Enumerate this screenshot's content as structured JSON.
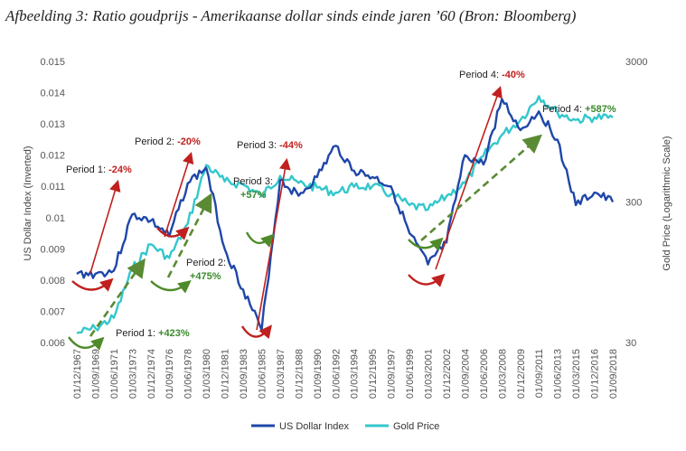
{
  "caption": "Afbeelding 3: Ratio goudprijs - Amerikaanse dollar sinds einde jaren ’60 (Bron: Bloomberg)",
  "chart_data": {
    "type": "line",
    "x": [
      "01/12/1967",
      "01/09/1969",
      "01/06/1971",
      "01/03/1973",
      "01/12/1974",
      "01/09/1976",
      "01/06/1978",
      "01/03/1980",
      "01/12/1981",
      "01/09/1983",
      "01/06/1985",
      "01/03/1987",
      "01/12/1988",
      "01/09/1990",
      "01/06/1992",
      "01/03/1994",
      "01/12/1995",
      "01/09/1997",
      "01/06/1999",
      "01/03/2001",
      "01/12/2002",
      "01/09/2004",
      "01/06/2006",
      "01/03/2008",
      "01/12/2009",
      "01/09/2011",
      "01/06/2013",
      "01/03/2015",
      "01/12/2016",
      "01/09/2018"
    ],
    "ylabel": "US Dollar Index (Inverted)",
    "y2label": "Gold Price (Logarithmic Scale)",
    "yticks": [
      "0.015",
      "0.014",
      "0.013",
      "0.012",
      "0.011",
      "0.01",
      "0.009",
      "0.008",
      "0.007",
      "0.006"
    ],
    "y2ticks": [
      "3000",
      "300",
      "30"
    ],
    "ylim": [
      0.006,
      0.015
    ],
    "y2lim": [
      30,
      3000
    ],
    "y2scale": "log",
    "grid": false,
    "legend_position": "bottom",
    "series": [
      {
        "name": "US Dollar Index",
        "axis": "left",
        "color": "#1f47a8",
        "values": [
          0.0082,
          0.0082,
          0.0083,
          0.0101,
          0.0099,
          0.0094,
          0.0111,
          0.0116,
          0.009,
          0.0077,
          0.0064,
          0.0112,
          0.0107,
          0.0113,
          0.0123,
          0.0115,
          0.0113,
          0.011,
          0.0095,
          0.0085,
          0.0092,
          0.012,
          0.0117,
          0.0138,
          0.0128,
          0.0134,
          0.0125,
          0.0104,
          0.0108,
          0.0105
        ]
      },
      {
        "name": "Gold Price",
        "axis": "right",
        "color": "#33c7cc",
        "values": [
          35,
          38,
          45,
          100,
          150,
          120,
          210,
          550,
          420,
          400,
          330,
          460,
          410,
          380,
          350,
          385,
          390,
          340,
          285,
          265,
          330,
          410,
          640,
          900,
          1150,
          1700,
          1300,
          1150,
          1200,
          1200
        ]
      }
    ],
    "annotations": [
      {
        "label": "Period 1: ",
        "value": "-24%",
        "value_color": "#c0201f"
      },
      {
        "label": "Period 2: ",
        "value": "-20%",
        "value_color": "#c0201f"
      },
      {
        "label": "Period 3: ",
        "value": "-44%",
        "value_color": "#c0201f"
      },
      {
        "label": "Period 4: ",
        "value": "-40%",
        "value_color": "#c0201f"
      },
      {
        "label": "Period 1: ",
        "value": "+423%",
        "value_color": "#3a8a2c"
      },
      {
        "label": "Period 2:",
        "value": "+475%",
        "value_color": "#3a8a2c"
      },
      {
        "label": "Period 3:",
        "value": "+57%",
        "value_color": "#3a8a2c"
      },
      {
        "label": "Period 4: ",
        "value": "+587%",
        "value_color": "#3a8a2c"
      }
    ]
  }
}
